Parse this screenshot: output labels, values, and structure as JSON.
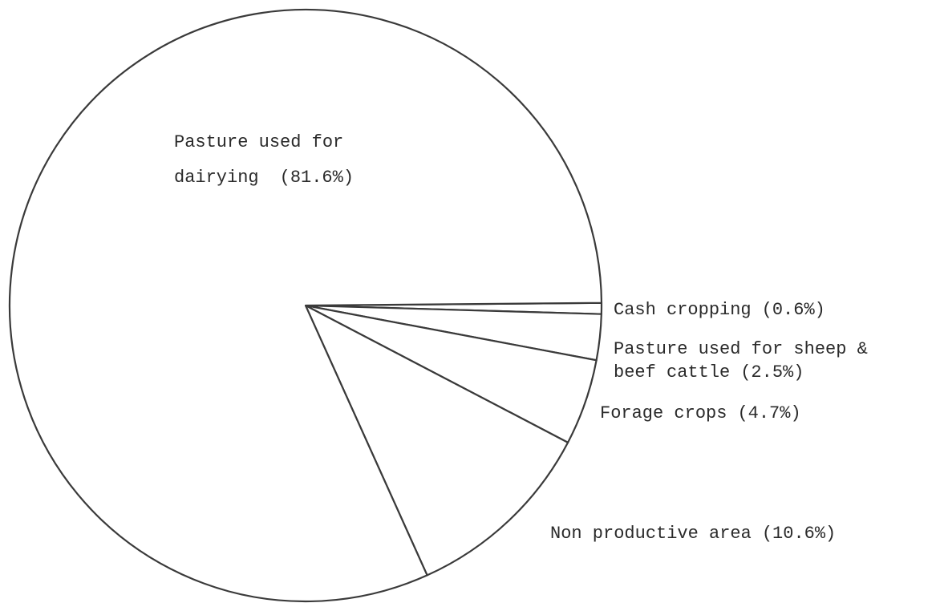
{
  "chart_data": {
    "type": "pie",
    "categories": [
      "Cash cropping",
      "Pasture used for sheep & beef cattle",
      "Forage crops",
      "Non productive area",
      "Pasture used for dairying"
    ],
    "values": [
      0.6,
      2.5,
      4.7,
      10.6,
      81.6
    ],
    "value_labels": [
      "(0.6%)",
      "(2.5%)",
      "(4.7%)",
      "(10.6%)",
      "(81.6%)"
    ],
    "color": "#ffffff"
  }
}
